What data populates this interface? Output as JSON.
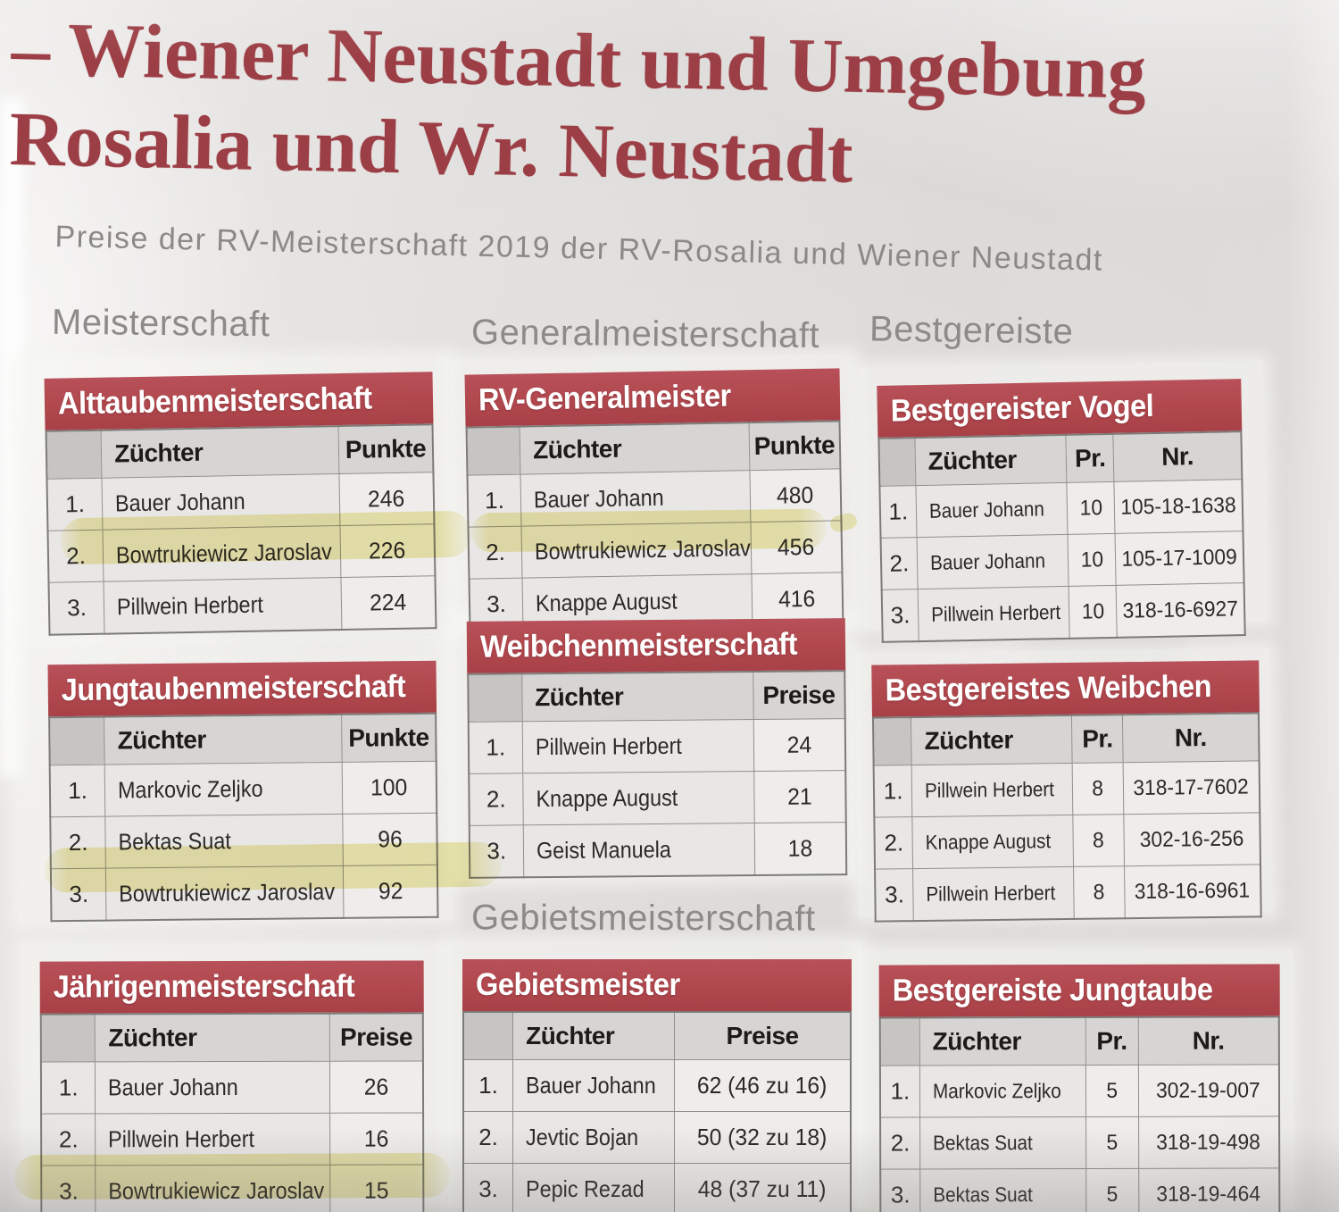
{
  "page": {
    "title_line1": "– Wiener Neustadt und Umgebung",
    "title_line2": "Rosalia und Wr. Neustadt",
    "subtitle": "Preise der RV-Meisterschaft 2019 der RV-Rosalia und Wiener Neustadt"
  },
  "section_labels": {
    "meisterschaft": "Meisterschaft",
    "generalmeisterschaft": "Generalmeisterschaft",
    "bestgereiste": "Bestgereiste",
    "gebietsmeisterschaft": "Gebietsmeisterschaft"
  },
  "colors": {
    "table_header_red": "#b04a4f",
    "title_red": "#9c3e45",
    "highlight_yellow": "#e6df8e",
    "label_gray": "#8d8b89"
  },
  "tables": {
    "alttauben": {
      "title": "Alttaubenmeisterschaft",
      "layout": "two",
      "columns": [
        "Züchter",
        "Punkte"
      ],
      "rows": [
        [
          "1.",
          "Bauer Johann",
          "246"
        ],
        [
          "2.",
          "Bowtrukiewicz Jaroslav",
          "226"
        ],
        [
          "3.",
          "Pillwein Herbert",
          "224"
        ]
      ],
      "highlighted_row": 2
    },
    "jungtauben": {
      "title": "Jungtaubenmeisterschaft",
      "layout": "two",
      "columns": [
        "Züchter",
        "Punkte"
      ],
      "rows": [
        [
          "1.",
          "Markovic Zeljko",
          "100"
        ],
        [
          "2.",
          "Bektas Suat",
          "96"
        ],
        [
          "3.",
          "Bowtrukiewicz Jaroslav",
          "92"
        ]
      ],
      "highlighted_row": 3
    },
    "jaehrigen": {
      "title": "Jährigenmeisterschaft",
      "layout": "two",
      "columns": [
        "Züchter",
        "Preise"
      ],
      "rows": [
        [
          "1.",
          "Bauer Johann",
          "26"
        ],
        [
          "2.",
          "Pillwein Herbert",
          "16"
        ],
        [
          "3.",
          "Bowtrukiewicz Jaroslav",
          "15"
        ]
      ],
      "highlighted_row": 3
    },
    "rv_generalmeister": {
      "title": "RV-Generalmeister",
      "layout": "two",
      "columns": [
        "Züchter",
        "Punkte"
      ],
      "rows": [
        [
          "1.",
          "Bauer Johann",
          "480"
        ],
        [
          "2.",
          "Bowtrukiewicz Jaroslav",
          "456"
        ],
        [
          "3.",
          "Knappe August",
          "416"
        ]
      ],
      "highlighted_row": 2
    },
    "weibchen": {
      "title": "Weibchenmeisterschaft",
      "layout": "two",
      "columns": [
        "Züchter",
        "Preise"
      ],
      "rows": [
        [
          "1.",
          "Pillwein Herbert",
          "24"
        ],
        [
          "2.",
          "Knappe August",
          "21"
        ],
        [
          "3.",
          "Geist Manuela",
          "18"
        ]
      ],
      "highlighted_row": null
    },
    "gebietsmeister": {
      "title": "Gebietsmeister",
      "layout": "wide",
      "columns": [
        "Züchter",
        "Preise"
      ],
      "rows": [
        [
          "1.",
          "Bauer Johann",
          "62 (46 zu 16)"
        ],
        [
          "2.",
          "Jevtic Bojan",
          "50 (32 zu 18)"
        ],
        [
          "3.",
          "Pepic Rezad",
          "48 (37 zu 11)"
        ]
      ],
      "highlighted_row": null
    },
    "bestgereister_vogel": {
      "title": "Bestgereister Vogel",
      "layout": "three",
      "columns": [
        "Züchter",
        "Pr.",
        "Nr."
      ],
      "rows": [
        [
          "1.",
          "Bauer Johann",
          "10",
          "105-18-1638"
        ],
        [
          "2.",
          "Bauer Johann",
          "10",
          "105-17-1009"
        ],
        [
          "3.",
          "Pillwein Herbert",
          "10",
          "318-16-6927"
        ]
      ],
      "highlighted_row": null
    },
    "bestgereistes_weibchen": {
      "title": "Bestgereistes Weibchen",
      "layout": "three",
      "columns": [
        "Züchter",
        "Pr.",
        "Nr."
      ],
      "rows": [
        [
          "1.",
          "Pillwein Herbert",
          "8",
          "318-17-7602"
        ],
        [
          "2.",
          "Knappe August",
          "8",
          "302-16-256"
        ],
        [
          "3.",
          "Pillwein Herbert",
          "8",
          "318-16-6961"
        ]
      ],
      "highlighted_row": null
    },
    "bestgereiste_jungtaube": {
      "title": "Bestgereiste Jungtaube",
      "layout": "three",
      "columns": [
        "Züchter",
        "Pr.",
        "Nr."
      ],
      "rows": [
        [
          "1.",
          "Markovic Zeljko",
          "5",
          "302-19-007"
        ],
        [
          "2.",
          "Bektas Suat",
          "5",
          "318-19-498"
        ],
        [
          "3.",
          "Bektas Suat",
          "5",
          "318-19-464"
        ]
      ],
      "highlighted_row": null
    }
  }
}
